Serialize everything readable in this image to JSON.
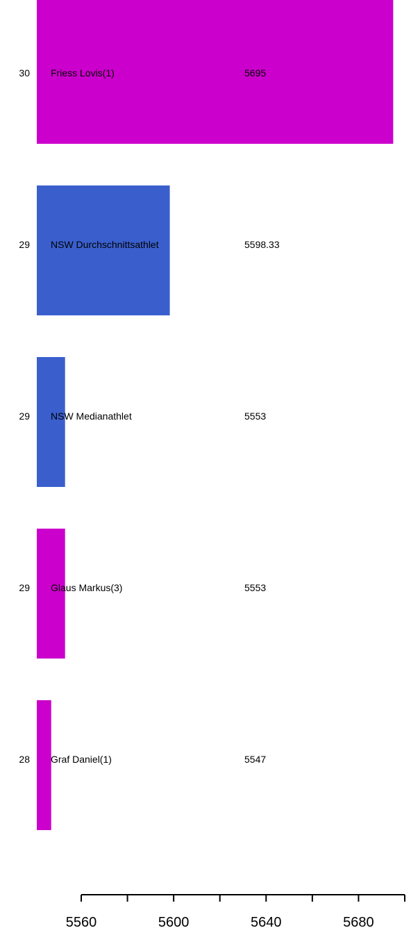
{
  "chart_data": {
    "type": "bar",
    "orientation": "horizontal",
    "title": "",
    "xlabel": "",
    "ylabel": "",
    "xlim": [
      5540,
      5700
    ],
    "x_ticks": [
      5560,
      5580,
      5600,
      5620,
      5640,
      5660,
      5680,
      5700
    ],
    "x_tick_labels": [
      "5560",
      "5600",
      "5640",
      "5680"
    ],
    "grid": false,
    "legend": "none",
    "colors": {
      "athlete": "#cc00cc",
      "reference": "#3a5fcd"
    },
    "bars": [
      {
        "rank": "30",
        "name": "Friess Lovis(1)",
        "value": 5695,
        "value_label": "5695",
        "kind": "athlete"
      },
      {
        "rank": "29",
        "name": "NSW Durchschnittsathlet",
        "value": 5598.33,
        "value_label": "5598.33",
        "kind": "reference"
      },
      {
        "rank": "29",
        "name": "NSW Medianathlet",
        "value": 5553,
        "value_label": "5553",
        "kind": "reference"
      },
      {
        "rank": "29",
        "name": "Glaus Markus(3)",
        "value": 5553,
        "value_label": "5553",
        "kind": "athlete"
      },
      {
        "rank": "28",
        "name": "Graf Daniel(1)",
        "value": 5547,
        "value_label": "5547",
        "kind": "athlete"
      }
    ]
  }
}
